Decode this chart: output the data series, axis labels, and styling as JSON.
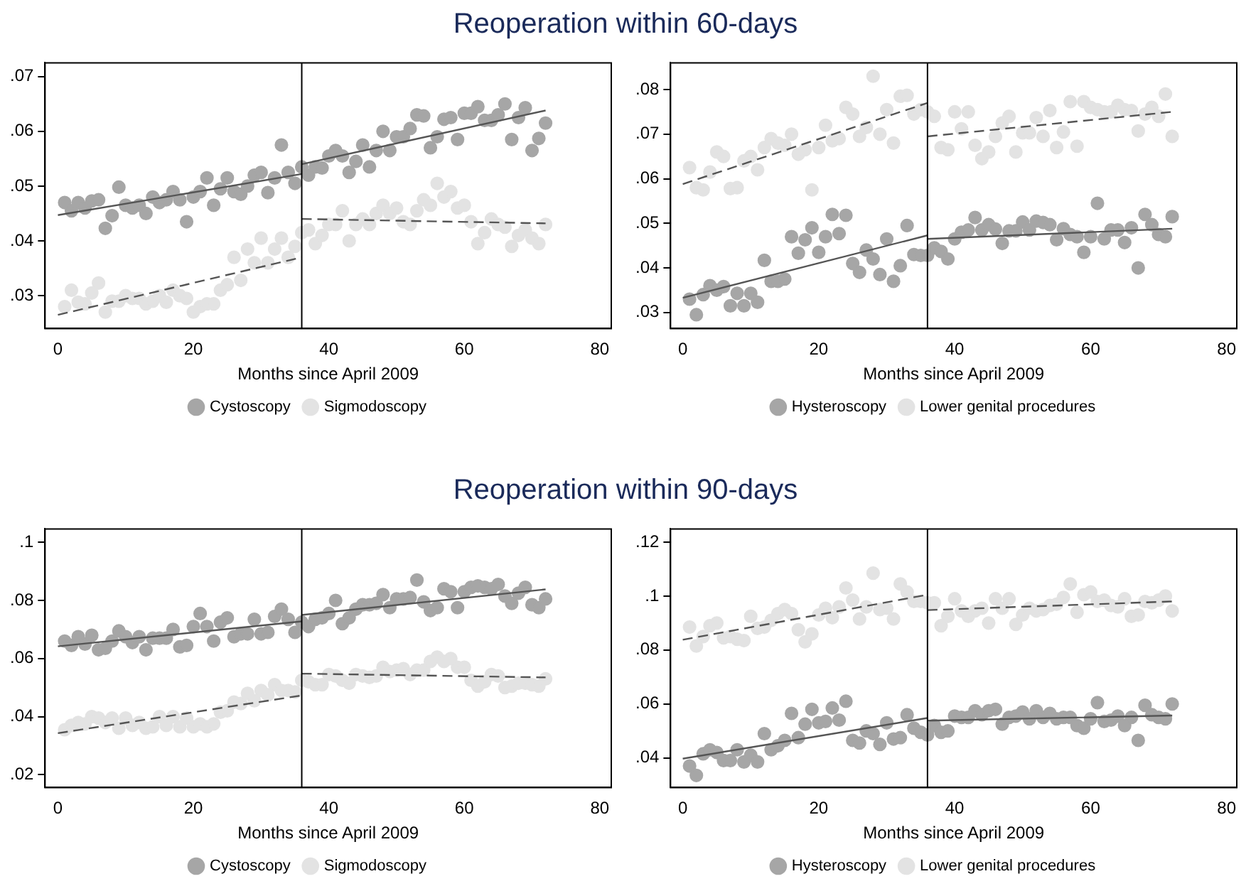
{
  "chart_data": [
    {
      "type": "scatter",
      "title": "Reoperation within 60-days",
      "xlabel": "Months since April 2009",
      "xlim": [
        -1.9,
        81.7
      ],
      "xticks": [
        0,
        20,
        40,
        60,
        80
      ],
      "ylim": [
        0.024,
        0.0725
      ],
      "yticks": [
        {
          "value": 0.03,
          "label": ".03"
        },
        {
          "value": 0.04,
          "label": ".04"
        },
        {
          "value": 0.05,
          "label": ".05"
        },
        {
          "value": 0.06,
          "label": ".06"
        },
        {
          "value": 0.07,
          "label": ".07"
        }
      ],
      "grid": false,
      "legend": "bottom",
      "ref_lines": [
        {
          "axis": "x",
          "value": 36,
          "color": "#000000"
        }
      ],
      "x": [
        1,
        2,
        3,
        4,
        5,
        6,
        7,
        8,
        9,
        10,
        11,
        12,
        13,
        14,
        15,
        16,
        17,
        18,
        19,
        20,
        21,
        22,
        23,
        24,
        25,
        26,
        27,
        28,
        29,
        30,
        31,
        32,
        33,
        34,
        35,
        36,
        37,
        38,
        39,
        40,
        41,
        42,
        43,
        44,
        45,
        46,
        47,
        48,
        49,
        50,
        51,
        52,
        53,
        54,
        55,
        56,
        57,
        58,
        59,
        60,
        61,
        62,
        63,
        64,
        65,
        66,
        67,
        68,
        69,
        70,
        71,
        72
      ],
      "series": [
        {
          "name": "Cystoscopy",
          "type": "scatter",
          "marker": "circle",
          "color": "#a6a6a6",
          "values": [
            0.047,
            0.0455,
            0.047,
            0.046,
            0.0473,
            0.0475,
            0.0423,
            0.0446,
            0.0498,
            0.0465,
            0.046,
            0.0465,
            0.045,
            0.048,
            0.047,
            0.0475,
            0.049,
            0.0475,
            0.0435,
            0.048,
            0.049,
            0.0515,
            0.0465,
            0.0495,
            0.0515,
            0.049,
            0.0485,
            0.05,
            0.052,
            0.0525,
            0.0488,
            0.0515,
            0.0575,
            0.0525,
            0.0505,
            0.0535,
            0.052,
            0.0535,
            0.0533,
            0.0555,
            0.0565,
            0.0555,
            0.0525,
            0.0545,
            0.0575,
            0.0535,
            0.0565,
            0.06,
            0.0565,
            0.059,
            0.059,
            0.0605,
            0.063,
            0.0628,
            0.057,
            0.059,
            0.0622,
            0.0625,
            0.0585,
            0.0633,
            0.0633,
            0.0645,
            0.062,
            0.062,
            0.063,
            0.065,
            0.0585,
            0.0625,
            0.0643,
            0.0565,
            0.0587,
            0.0615
          ]
        },
        {
          "name": "Sigmodoscopy",
          "type": "scatter",
          "marker": "circle",
          "color": "#e3e3e3",
          "values": [
            0.028,
            0.031,
            0.0288,
            0.0285,
            0.0305,
            0.0323,
            0.027,
            0.029,
            0.029,
            0.03,
            0.0295,
            0.0295,
            0.0285,
            0.029,
            0.03,
            0.0288,
            0.031,
            0.03,
            0.0295,
            0.027,
            0.028,
            0.0285,
            0.0285,
            0.031,
            0.032,
            0.037,
            0.0328,
            0.0385,
            0.036,
            0.0405,
            0.036,
            0.0385,
            0.0405,
            0.037,
            0.039,
            0.0415,
            0.042,
            0.0395,
            0.041,
            0.043,
            0.043,
            0.0455,
            0.04,
            0.043,
            0.044,
            0.043,
            0.045,
            0.0465,
            0.045,
            0.046,
            0.0435,
            0.043,
            0.0455,
            0.0475,
            0.0465,
            0.0505,
            0.048,
            0.049,
            0.046,
            0.0465,
            0.0435,
            0.0395,
            0.0415,
            0.044,
            0.043,
            0.0425,
            0.039,
            0.041,
            0.042,
            0.0405,
            0.0395,
            0.043
          ]
        },
        {
          "type": "line",
          "color": "#555555",
          "line_style": "solid",
          "x": [
            0,
            36,
            null,
            36,
            72
          ],
          "values": [
            0.0447,
            0.0522,
            null,
            0.054,
            0.0638
          ]
        },
        {
          "type": "line",
          "color": "#555555",
          "line_style": "dashed",
          "x": [
            0,
            36,
            null,
            36,
            72
          ],
          "values": [
            0.0265,
            0.037,
            null,
            0.044,
            0.0432
          ]
        }
      ]
    },
    {
      "type": "scatter",
      "xlabel": "Months since April 2009",
      "xlim": [
        -1.8,
        81.5
      ],
      "xticks": [
        0,
        20,
        40,
        60,
        80
      ],
      "ylim": [
        0.0264,
        0.086
      ],
      "yticks": [
        {
          "value": 0.03,
          "label": ".03"
        },
        {
          "value": 0.04,
          "label": ".04"
        },
        {
          "value": 0.05,
          "label": ".05"
        },
        {
          "value": 0.06,
          "label": ".06"
        },
        {
          "value": 0.07,
          "label": ".07"
        },
        {
          "value": 0.08,
          "label": ".08"
        }
      ],
      "grid": false,
      "legend": "bottom",
      "ref_lines": [
        {
          "axis": "x",
          "value": 36,
          "color": "#000000"
        }
      ],
      "x": [
        1,
        2,
        3,
        4,
        5,
        6,
        7,
        8,
        9,
        10,
        11,
        12,
        13,
        14,
        15,
        16,
        17,
        18,
        19,
        20,
        21,
        22,
        23,
        24,
        25,
        26,
        27,
        28,
        29,
        30,
        31,
        32,
        33,
        34,
        35,
        36,
        37,
        38,
        39,
        40,
        41,
        42,
        43,
        44,
        45,
        46,
        47,
        48,
        49,
        50,
        51,
        52,
        53,
        54,
        55,
        56,
        57,
        58,
        59,
        60,
        61,
        62,
        63,
        64,
        65,
        66,
        67,
        68,
        69,
        70,
        71,
        72
      ],
      "series": [
        {
          "name": "Hysteroscopy",
          "type": "scatter",
          "marker": "circle",
          "color": "#a6a6a6",
          "values": [
            0.033,
            0.0295,
            0.034,
            0.036,
            0.035,
            0.0358,
            0.0315,
            0.0343,
            0.0315,
            0.0343,
            0.0323,
            0.0417,
            0.037,
            0.037,
            0.0375,
            0.047,
            0.0433,
            0.0463,
            0.049,
            0.0435,
            0.047,
            0.052,
            0.0477,
            0.0518,
            0.041,
            0.039,
            0.044,
            0.042,
            0.0385,
            0.0465,
            0.037,
            0.0405,
            0.0495,
            0.043,
            0.0428,
            0.0428,
            0.0445,
            0.0437,
            0.042,
            0.0465,
            0.048,
            0.0485,
            0.0513,
            0.0485,
            0.0497,
            0.0487,
            0.0455,
            0.0483,
            0.0483,
            0.0503,
            0.0485,
            0.0505,
            0.0502,
            0.0497,
            0.0463,
            0.0488,
            0.0475,
            0.047,
            0.0435,
            0.047,
            0.0545,
            0.0465,
            0.0485,
            0.0485,
            0.0457,
            0.049,
            0.04,
            0.052,
            0.0497,
            0.0475,
            0.047,
            0.0515
          ]
        },
        {
          "name": "Lower genital procedures",
          "type": "scatter",
          "marker": "circle",
          "color": "#e3e3e3",
          "values": [
            0.0625,
            0.058,
            0.0575,
            0.0615,
            0.066,
            0.065,
            0.0578,
            0.058,
            0.064,
            0.065,
            0.062,
            0.067,
            0.069,
            0.068,
            0.0675,
            0.07,
            0.0655,
            0.0665,
            0.0575,
            0.067,
            0.072,
            0.0685,
            0.069,
            0.076,
            0.0745,
            0.0695,
            0.0715,
            0.083,
            0.07,
            0.0755,
            0.068,
            0.0785,
            0.0787,
            0.0745,
            0.0755,
            0.075,
            0.074,
            0.067,
            0.0665,
            0.075,
            0.0712,
            0.075,
            0.0675,
            0.0645,
            0.066,
            0.0695,
            0.0725,
            0.074,
            0.066,
            0.0703,
            0.0703,
            0.0737,
            0.0695,
            0.0753,
            0.067,
            0.0705,
            0.0773,
            0.0673,
            0.0773,
            0.076,
            0.0755,
            0.075,
            0.075,
            0.0765,
            0.0755,
            0.0753,
            0.0707,
            0.0745,
            0.076,
            0.074,
            0.079,
            0.0695
          ]
        },
        {
          "type": "line",
          "color": "#555555",
          "line_style": "solid",
          "x": [
            0,
            36,
            null,
            36,
            72
          ],
          "values": [
            0.0333,
            0.0473,
            null,
            0.0465,
            0.0488
          ]
        },
        {
          "type": "line",
          "color": "#555555",
          "line_style": "dashed",
          "x": [
            0,
            36,
            null,
            36,
            72
          ],
          "values": [
            0.0588,
            0.077,
            null,
            0.0695,
            0.075
          ]
        }
      ]
    },
    {
      "type": "scatter",
      "title": "Reoperation within 90-days",
      "xlabel": "Months since April 2009",
      "xlim": [
        -1.9,
        81.7
      ],
      "xticks": [
        0,
        20,
        40,
        60,
        80
      ],
      "ylim": [
        0.0156,
        0.1046
      ],
      "yticks": [
        {
          "value": 0.02,
          "label": ".02"
        },
        {
          "value": 0.04,
          "label": ".04"
        },
        {
          "value": 0.06,
          "label": ".06"
        },
        {
          "value": 0.08,
          "label": ".08"
        },
        {
          "value": 0.1,
          "label": ".1"
        }
      ],
      "grid": false,
      "legend": "bottom",
      "ref_lines": [
        {
          "axis": "x",
          "value": 36,
          "color": "#000000"
        }
      ],
      "x": [
        1,
        2,
        3,
        4,
        5,
        6,
        7,
        8,
        9,
        10,
        11,
        12,
        13,
        14,
        15,
        16,
        17,
        18,
        19,
        20,
        21,
        22,
        23,
        24,
        25,
        26,
        27,
        28,
        29,
        30,
        31,
        32,
        33,
        34,
        35,
        36,
        37,
        38,
        39,
        40,
        41,
        42,
        43,
        44,
        45,
        46,
        47,
        48,
        49,
        50,
        51,
        52,
        53,
        54,
        55,
        56,
        57,
        58,
        59,
        60,
        61,
        62,
        63,
        64,
        65,
        66,
        67,
        68,
        69,
        70,
        71,
        72
      ],
      "series": [
        {
          "name": "Cystoscopy",
          "type": "scatter",
          "marker": "circle",
          "color": "#a6a6a6",
          "values": [
            0.066,
            0.0645,
            0.0675,
            0.065,
            0.068,
            0.063,
            0.0635,
            0.066,
            0.0695,
            0.0675,
            0.0655,
            0.0675,
            0.063,
            0.067,
            0.067,
            0.067,
            0.07,
            0.064,
            0.0645,
            0.071,
            0.0755,
            0.071,
            0.066,
            0.0725,
            0.074,
            0.0675,
            0.0685,
            0.0685,
            0.0735,
            0.0685,
            0.069,
            0.0745,
            0.077,
            0.0735,
            0.069,
            0.0725,
            0.071,
            0.0735,
            0.074,
            0.0755,
            0.08,
            0.072,
            0.074,
            0.077,
            0.0785,
            0.0785,
            0.079,
            0.082,
            0.0775,
            0.0805,
            0.0805,
            0.081,
            0.087,
            0.0795,
            0.0765,
            0.0775,
            0.084,
            0.083,
            0.0775,
            0.083,
            0.0845,
            0.085,
            0.0845,
            0.084,
            0.0855,
            0.0815,
            0.079,
            0.0825,
            0.0845,
            0.0785,
            0.0775,
            0.0805
          ]
        },
        {
          "name": "Sigmodoscopy",
          "type": "scatter",
          "marker": "circle",
          "color": "#e3e3e3",
          "values": [
            0.0355,
            0.037,
            0.038,
            0.0375,
            0.04,
            0.0395,
            0.038,
            0.0395,
            0.036,
            0.0395,
            0.037,
            0.038,
            0.036,
            0.0365,
            0.04,
            0.037,
            0.04,
            0.0365,
            0.0395,
            0.0365,
            0.0375,
            0.0365,
            0.0375,
            0.0415,
            0.042,
            0.045,
            0.0445,
            0.048,
            0.0455,
            0.049,
            0.0475,
            0.051,
            0.049,
            0.049,
            0.0485,
            0.0525,
            0.052,
            0.051,
            0.051,
            0.0545,
            0.054,
            0.0525,
            0.0515,
            0.0545,
            0.054,
            0.0535,
            0.054,
            0.057,
            0.0555,
            0.056,
            0.0565,
            0.0545,
            0.056,
            0.056,
            0.059,
            0.0605,
            0.059,
            0.06,
            0.057,
            0.057,
            0.0525,
            0.0505,
            0.052,
            0.0545,
            0.054,
            0.05,
            0.0505,
            0.0515,
            0.0515,
            0.051,
            0.0505,
            0.053
          ]
        },
        {
          "type": "line",
          "color": "#555555",
          "line_style": "solid",
          "x": [
            0,
            36,
            null,
            36,
            72
          ],
          "values": [
            0.0642,
            0.0728,
            null,
            0.075,
            0.0838
          ]
        },
        {
          "type": "line",
          "color": "#555555",
          "line_style": "dashed",
          "x": [
            0,
            36,
            null,
            36,
            72
          ],
          "values": [
            0.0343,
            0.0473,
            null,
            0.0548,
            0.0535
          ]
        }
      ]
    },
    {
      "type": "scatter",
      "xlabel": "Months since April 2009",
      "xlim": [
        -1.8,
        81.5
      ],
      "xticks": [
        0,
        20,
        40,
        60,
        80
      ],
      "ylim": [
        0.029,
        0.1249
      ],
      "yticks": [
        {
          "value": 0.04,
          "label": ".04"
        },
        {
          "value": 0.06,
          "label": ".06"
        },
        {
          "value": 0.08,
          "label": ".08"
        },
        {
          "value": 0.1,
          "label": ".1"
        },
        {
          "value": 0.12,
          "label": ".12"
        }
      ],
      "grid": false,
      "legend": "bottom",
      "ref_lines": [
        {
          "axis": "x",
          "value": 36,
          "color": "#000000"
        }
      ],
      "x": [
        1,
        2,
        3,
        4,
        5,
        6,
        7,
        8,
        9,
        10,
        11,
        12,
        13,
        14,
        15,
        16,
        17,
        18,
        19,
        20,
        21,
        22,
        23,
        24,
        25,
        26,
        27,
        28,
        29,
        30,
        31,
        32,
        33,
        34,
        35,
        36,
        37,
        38,
        39,
        40,
        41,
        42,
        43,
        44,
        45,
        46,
        47,
        48,
        49,
        50,
        51,
        52,
        53,
        54,
        55,
        56,
        57,
        58,
        59,
        60,
        61,
        62,
        63,
        64,
        65,
        66,
        67,
        68,
        69,
        70,
        71,
        72
      ],
      "series": [
        {
          "name": "Hysteroscopy",
          "type": "scatter",
          "marker": "circle",
          "color": "#a6a6a6",
          "values": [
            0.037,
            0.0335,
            0.0415,
            0.043,
            0.042,
            0.039,
            0.039,
            0.043,
            0.0385,
            0.041,
            0.0385,
            0.049,
            0.043,
            0.0445,
            0.0465,
            0.0565,
            0.0475,
            0.0525,
            0.058,
            0.053,
            0.0535,
            0.0585,
            0.054,
            0.061,
            0.0465,
            0.0455,
            0.05,
            0.049,
            0.045,
            0.053,
            0.047,
            0.0475,
            0.056,
            0.051,
            0.0495,
            0.0485,
            0.052,
            0.0495,
            0.05,
            0.0555,
            0.055,
            0.055,
            0.0575,
            0.056,
            0.0575,
            0.058,
            0.0525,
            0.055,
            0.0555,
            0.057,
            0.0545,
            0.0575,
            0.055,
            0.0565,
            0.0545,
            0.055,
            0.055,
            0.052,
            0.051,
            0.0545,
            0.0605,
            0.0535,
            0.054,
            0.0555,
            0.052,
            0.055,
            0.0465,
            0.0595,
            0.056,
            0.055,
            0.0545,
            0.06
          ]
        },
        {
          "name": "Lower genital procedures",
          "type": "scatter",
          "marker": "circle",
          "color": "#e3e3e3",
          "values": [
            0.0885,
            0.0815,
            0.085,
            0.089,
            0.09,
            0.0845,
            0.085,
            0.084,
            0.0835,
            0.0925,
            0.088,
            0.0885,
            0.091,
            0.0935,
            0.095,
            0.0935,
            0.0875,
            0.083,
            0.086,
            0.093,
            0.0955,
            0.092,
            0.096,
            0.103,
            0.0985,
            0.0915,
            0.096,
            0.1085,
            0.095,
            0.0955,
            0.0915,
            0.1045,
            0.1015,
            0.098,
            0.098,
            0.0975,
            0.0975,
            0.089,
            0.0925,
            0.099,
            0.0945,
            0.0925,
            0.0945,
            0.0955,
            0.09,
            0.099,
            0.0955,
            0.099,
            0.0895,
            0.093,
            0.0955,
            0.0945,
            0.095,
            0.0965,
            0.097,
            0.0995,
            0.1045,
            0.094,
            0.1005,
            0.1015,
            0.098,
            0.0985,
            0.0965,
            0.096,
            0.099,
            0.0925,
            0.093,
            0.098,
            0.0975,
            0.0985,
            0.1,
            0.0945
          ]
        },
        {
          "type": "line",
          "color": "#555555",
          "line_style": "solid",
          "x": [
            0,
            36,
            null,
            36,
            72
          ],
          "values": [
            0.0397,
            0.0548,
            null,
            0.0538,
            0.0557
          ]
        },
        {
          "type": "line",
          "color": "#555555",
          "line_style": "dashed",
          "x": [
            0,
            36,
            null,
            36,
            72
          ],
          "values": [
            0.0838,
            0.1005,
            null,
            0.0948,
            0.098
          ]
        }
      ]
    }
  ]
}
